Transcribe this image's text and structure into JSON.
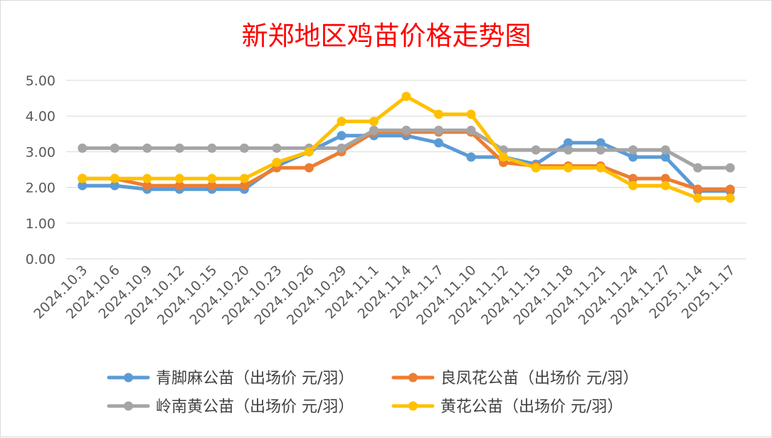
{
  "chart_data": {
    "type": "line",
    "title": "新郑地区鸡苗价格走势图",
    "title_color": "#ff0000",
    "xlabel": "",
    "ylabel": "",
    "ylim": [
      0,
      5
    ],
    "yticks": [
      "0.00",
      "1.00",
      "2.00",
      "3.00",
      "4.00",
      "5.00"
    ],
    "grid": true,
    "legend_position": "bottom",
    "categories": [
      "2024.10.3",
      "2024.10.6",
      "2024.10.9",
      "2024.10.12",
      "2024.10.15",
      "2024.10.20",
      "2024.10.23",
      "2024.10.26",
      "2024.10.29",
      "2024.11.1",
      "2024.11.4",
      "2024.11.7",
      "2024.11.10",
      "2024.11.12",
      "2024.11.15",
      "2024.11.18",
      "2024.11.21",
      "2024.11.24",
      "2024.11.27",
      "2025.1.14",
      "2025.1.17"
    ],
    "series": [
      {
        "name": "青脚麻公苗（出场价 元/羽）",
        "color": "#5b9bd5",
        "values": [
          2.05,
          2.05,
          1.95,
          1.95,
          1.95,
          1.95,
          2.6,
          3.0,
          3.45,
          3.45,
          3.45,
          3.25,
          2.85,
          2.85,
          2.65,
          3.25,
          3.25,
          2.85,
          2.85,
          1.9,
          1.9
        ]
      },
      {
        "name": "良凤花公苗（出场价 元/羽）",
        "color": "#ed7d31",
        "values": [
          2.25,
          2.25,
          2.05,
          2.05,
          2.05,
          2.05,
          2.55,
          2.55,
          3.0,
          3.55,
          3.55,
          3.55,
          3.55,
          2.7,
          2.6,
          2.6,
          2.6,
          2.25,
          2.25,
          1.95,
          1.95
        ]
      },
      {
        "name": "岭南黄公苗（出场价 元/羽）",
        "color": "#a5a5a5",
        "values": [
          3.1,
          3.1,
          3.1,
          3.1,
          3.1,
          3.1,
          3.1,
          3.1,
          3.1,
          3.6,
          3.6,
          3.6,
          3.6,
          3.05,
          3.05,
          3.05,
          3.05,
          3.05,
          3.05,
          2.55,
          2.55
        ]
      },
      {
        "name": "黄花公苗（出场价 元/羽）",
        "color": "#ffc000",
        "values": [
          2.25,
          2.25,
          2.25,
          2.25,
          2.25,
          2.25,
          2.7,
          3.0,
          3.85,
          3.85,
          4.55,
          4.05,
          4.05,
          2.85,
          2.55,
          2.55,
          2.55,
          2.05,
          2.05,
          1.7,
          1.7
        ]
      }
    ]
  }
}
